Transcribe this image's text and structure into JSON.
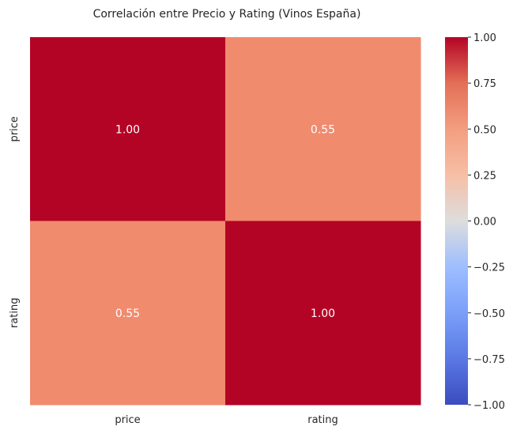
{
  "chart_data": {
    "type": "heatmap",
    "title": "Correlación entre Precio y Rating (Vinos España)",
    "x_categories": [
      "price",
      "rating"
    ],
    "y_categories": [
      "price",
      "rating"
    ],
    "values": [
      [
        1.0,
        0.55
      ],
      [
        0.55,
        1.0
      ]
    ],
    "cell_labels": [
      [
        "1.00",
        "0.55"
      ],
      [
        "0.55",
        "1.00"
      ]
    ],
    "colormap": "coolwarm",
    "colorbar": {
      "vmin": -1.0,
      "vmax": 1.0,
      "ticks": [
        1.0,
        0.75,
        0.5,
        0.25,
        0.0,
        -0.25,
        -0.5,
        -0.75,
        -1.0
      ],
      "tick_labels": [
        "1.00",
        "0.75",
        "0.50",
        "0.25",
        "0.00",
        "−0.25",
        "−0.50",
        "−0.75",
        "−1.00"
      ],
      "placement": "right"
    },
    "colors": {
      "high": "#b40426",
      "mid": "#dddddd",
      "low": "#3b4cc0",
      "cell_0.55": "#f08b6e",
      "annotation_text": "#ffffff"
    }
  }
}
